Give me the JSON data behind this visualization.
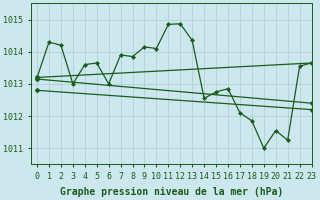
{
  "title": "Graphe pression niveau de la mer (hPa)",
  "background_color": "#cce8ee",
  "grid_color": "#aacdd6",
  "line_color": "#1a5c1a",
  "marker_color": "#1a5c1a",
  "xlim": [
    -0.5,
    23
  ],
  "ylim": [
    1010.5,
    1015.5
  ],
  "yticks": [
    1011,
    1012,
    1013,
    1014,
    1015
  ],
  "xticks": [
    0,
    1,
    2,
    3,
    4,
    5,
    6,
    7,
    8,
    9,
    10,
    11,
    12,
    13,
    14,
    15,
    16,
    17,
    18,
    19,
    20,
    21,
    22,
    23
  ],
  "main_series": [
    1013.2,
    1014.3,
    1014.2,
    1013.0,
    1013.6,
    1013.65,
    1013.0,
    1013.9,
    1013.85,
    1014.15,
    1014.1,
    1014.85,
    1014.87,
    1014.35,
    1012.55,
    1012.75,
    1012.85,
    1012.1,
    1011.85,
    1011.0,
    1011.55,
    1011.25,
    1013.55,
    1013.65
  ],
  "trend1_x": [
    0,
    23
  ],
  "trend1_y": [
    1013.2,
    1013.65
  ],
  "trend2_x": [
    0,
    23
  ],
  "trend2_y": [
    1013.15,
    1012.4
  ],
  "trend3_x": [
    0,
    23
  ],
  "trend3_y": [
    1012.8,
    1012.2
  ],
  "xlabel_fontsize": 7.0,
  "tick_fontsize": 6.0,
  "label_color": "#1a5c1a"
}
